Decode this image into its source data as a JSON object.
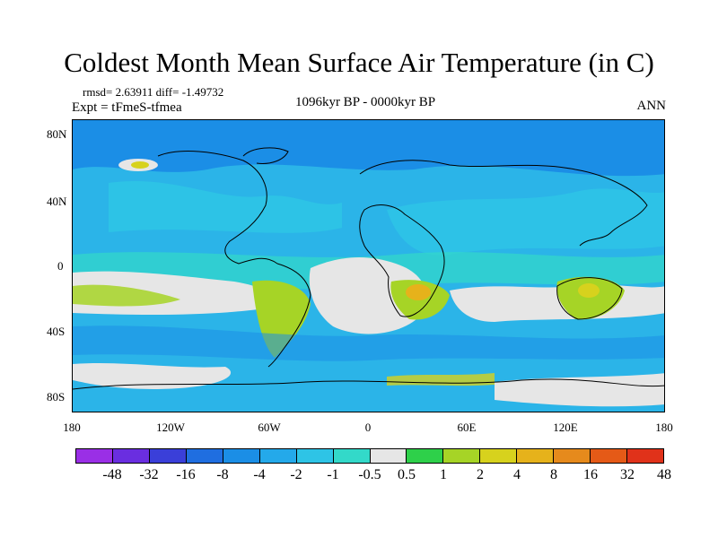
{
  "title": "Coldest Month Mean Surface Air Temperature (in C)",
  "stats_line": "rmsd= 2.63911 diff= -1.49732",
  "experiment": "Expt = tFmeS-tfmea",
  "period": "1096kyr BP - 0000kyr BP",
  "season": "ANN",
  "axes": {
    "y_ticks": [
      "80N",
      "40N",
      "0",
      "40S",
      "80S"
    ],
    "x_ticks": [
      "180",
      "120W",
      "60W",
      "0",
      "60E",
      "120E",
      "180"
    ]
  },
  "colorbar": {
    "labels": [
      "-48",
      "-32",
      "-16",
      "-8",
      "-4",
      "-2",
      "-1",
      "-0.5",
      "0.5",
      "1",
      "2",
      "4",
      "8",
      "16",
      "32",
      "48"
    ],
    "colors": [
      "#9a2fe6",
      "#6a2ee0",
      "#3a3fd9",
      "#1f6ee0",
      "#1b8ee6",
      "#24a9ea",
      "#2ec4e6",
      "#33d9c9",
      "#e6e6e6",
      "#2ed04a",
      "#a6d426",
      "#d7d21d",
      "#e6b21b",
      "#e68a1c",
      "#e55a17",
      "#e0321a"
    ]
  }
}
